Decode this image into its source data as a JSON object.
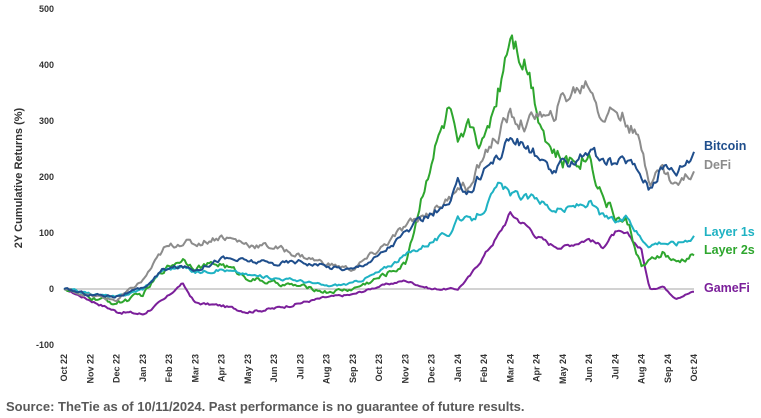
{
  "chart_data": {
    "type": "line",
    "ylabel": "2Y Cumulative Returns (%)",
    "xlabel": "",
    "ylim": [
      -100,
      500
    ],
    "y_ticks": [
      -100,
      0,
      100,
      200,
      300,
      400,
      500
    ],
    "x_ticks": [
      "Oct 22",
      "Nov 22",
      "Dec 22",
      "Jan 23",
      "Feb 23",
      "Mar 23",
      "Apr 23",
      "May 23",
      "Jun 23",
      "Jul 23",
      "Aug 23",
      "Sep 23",
      "Oct 23",
      "Nov 23",
      "Dec 23",
      "Jan 24",
      "Feb 24",
      "Mar 24",
      "Apr 24",
      "May 24",
      "Jun 24",
      "Jul 24",
      "Aug 24",
      "Sep 24",
      "Oct 24"
    ],
    "x_unit": "months since Oct 2022 (0 = Oct 22, 24 = Oct 24)",
    "grid": "zero line only",
    "legend": "right, labels at series end",
    "series": [
      {
        "name": "Bitcoin",
        "color": "#1f4e8c",
        "x": [
          0,
          1,
          2,
          3,
          3.8,
          4.5,
          5,
          6,
          7,
          8,
          9,
          10,
          11,
          12,
          13,
          14,
          14.7,
          15,
          15.5,
          16,
          16.6,
          17,
          17.7,
          18,
          18.5,
          19,
          20,
          20.5,
          21,
          21.5,
          22,
          22.3,
          22.8,
          23.3,
          24
        ],
        "y": [
          0,
          -10,
          -12,
          0,
          35,
          40,
          35,
          55,
          50,
          45,
          50,
          40,
          35,
          60,
          100,
          135,
          150,
          185,
          175,
          215,
          240,
          270,
          250,
          240,
          205,
          220,
          250,
          225,
          225,
          230,
          205,
          180,
          220,
          210,
          245
        ]
      },
      {
        "name": "DeFi",
        "color": "#8c8c8c",
        "x": [
          0,
          1,
          2,
          3,
          3.8,
          4.5,
          5,
          6,
          7,
          8,
          9,
          10,
          11,
          12,
          13,
          14,
          14.7,
          15,
          15.5,
          16,
          16.6,
          17,
          17.7,
          18,
          18.5,
          19,
          20,
          20.5,
          21,
          21.5,
          22,
          22.3,
          22.8,
          23.3,
          24
        ],
        "y": [
          0,
          -12,
          -20,
          15,
          70,
          85,
          80,
          95,
          80,
          75,
          60,
          45,
          35,
          70,
          110,
          140,
          160,
          190,
          180,
          240,
          280,
          310,
          290,
          320,
          295,
          340,
          370,
          310,
          320,
          300,
          250,
          200,
          215,
          185,
          210
        ]
      },
      {
        "name": "Layer 1s",
        "color": "#1fb2c3",
        "x": [
          0,
          1,
          2,
          3,
          3.8,
          4.5,
          5,
          6,
          7,
          8,
          9,
          10,
          11,
          12,
          13,
          14,
          14.7,
          15,
          15.5,
          16,
          16.6,
          17,
          17.7,
          18,
          18.5,
          19,
          20,
          20.5,
          21,
          21.5,
          22,
          22.3,
          22.8,
          23.3,
          24
        ],
        "y": [
          0,
          -8,
          -15,
          0,
          35,
          40,
          30,
          35,
          25,
          20,
          15,
          5,
          10,
          30,
          60,
          85,
          100,
          130,
          120,
          145,
          185,
          170,
          160,
          165,
          145,
          140,
          155,
          130,
          120,
          125,
          90,
          80,
          85,
          80,
          95
        ]
      },
      {
        "name": "Layer 2s",
        "color": "#2ea62e",
        "x": [
          0,
          1,
          2,
          3,
          3.8,
          4.5,
          5,
          6,
          7,
          8,
          9,
          10,
          11,
          12,
          13,
          14,
          14.7,
          15,
          15.5,
          16,
          16.6,
          17,
          17.7,
          18,
          18.5,
          19,
          20,
          20.5,
          21,
          21.5,
          22,
          22.3,
          22.8,
          23.3,
          24
        ],
        "y": [
          0,
          -15,
          -25,
          -10,
          35,
          55,
          40,
          45,
          20,
          10,
          5,
          -5,
          0,
          20,
          45,
          235,
          320,
          240,
          290,
          260,
          370,
          470,
          395,
          330,
          255,
          225,
          240,
          170,
          130,
          115,
          40,
          45,
          65,
          45,
          60
        ]
      },
      {
        "name": "GameFi",
        "color": "#7b1f9a",
        "x": [
          0,
          1,
          2,
          3,
          3.8,
          4.5,
          5,
          6,
          7,
          8,
          9,
          10,
          11,
          12,
          13,
          14,
          14.7,
          15,
          15.5,
          16,
          16.6,
          17,
          17.7,
          18,
          18.5,
          19,
          20,
          20.5,
          21,
          21.5,
          22,
          22.3,
          22.8,
          23.3,
          24
        ],
        "y": [
          0,
          -20,
          -40,
          -45,
          -20,
          10,
          -25,
          -30,
          -40,
          -35,
          -25,
          -15,
          -10,
          5,
          15,
          0,
          0,
          0,
          25,
          60,
          100,
          135,
          110,
          95,
          80,
          75,
          90,
          75,
          100,
          95,
          70,
          0,
          5,
          -15,
          -5
        ]
      }
    ]
  },
  "footer": {
    "source": "Source: TheTie as of 10/11/2024. Past performance is no guarantee of future results."
  }
}
